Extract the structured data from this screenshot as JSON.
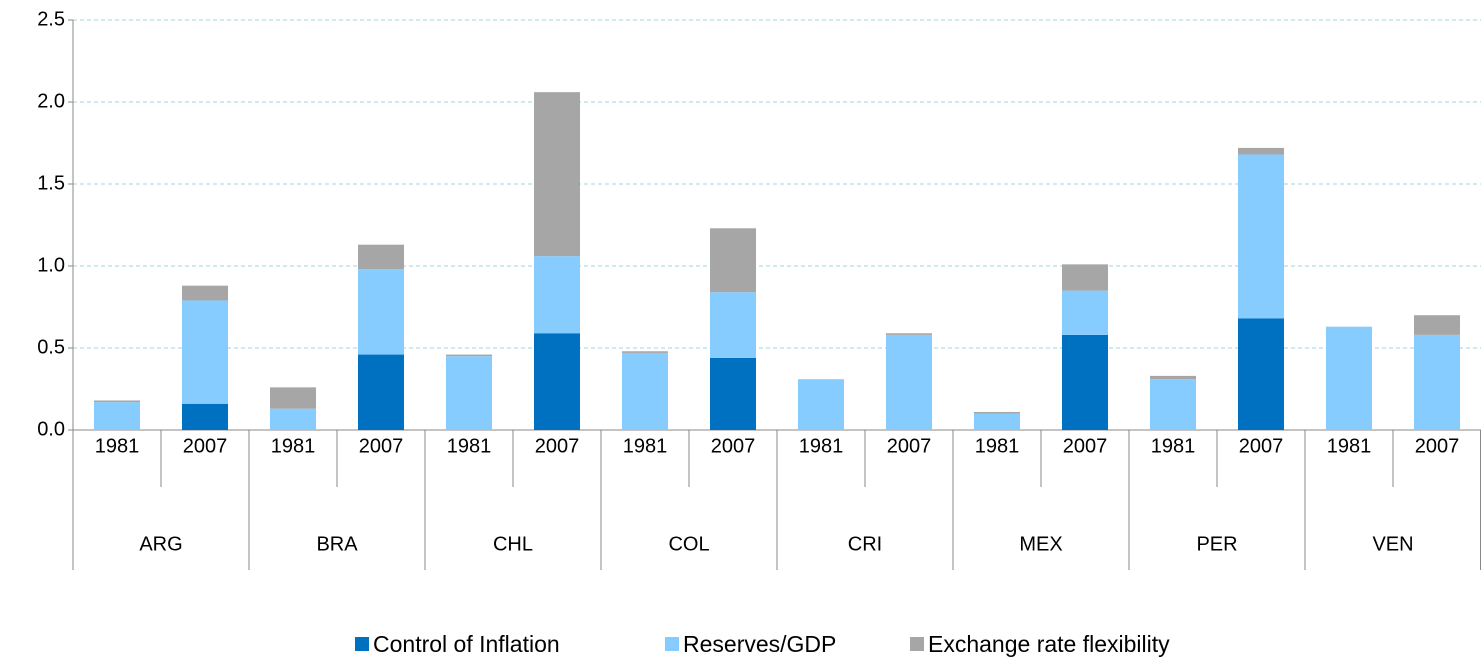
{
  "chart_data": {
    "type": "stacked_bar",
    "categories": [
      "1981",
      "2007",
      "1981",
      "2007",
      "1981",
      "2007",
      "1981",
      "2007",
      "1981",
      "2007",
      "1981",
      "2007",
      "1981",
      "2007",
      "1981",
      "2007"
    ],
    "groups": [
      "ARG",
      "BRA",
      "CHL",
      "COL",
      "CRI",
      "MEX",
      "PER",
      "VEN"
    ],
    "series": [
      {
        "name": "Control of Inflation",
        "color": "#0070c0",
        "values": [
          0,
          0.16,
          0,
          0.46,
          0,
          0.59,
          0,
          0.44,
          0,
          0,
          0,
          0.58,
          0,
          0.68,
          0,
          0
        ]
      },
      {
        "name": "Reserves/GDP",
        "color": "#87ccff",
        "values": [
          0.17,
          0.63,
          0.13,
          0.52,
          0.45,
          0.47,
          0.47,
          0.4,
          0.31,
          0.58,
          0.1,
          0.27,
          0.31,
          1.0,
          0.63,
          0.58
        ]
      },
      {
        "name": "Exchange rate flexibility",
        "color": "#a6a6a6",
        "values": [
          0.01,
          0.09,
          0.13,
          0.15,
          0.01,
          1.0,
          0.01,
          0.39,
          0,
          0.01,
          0.01,
          0.16,
          0.02,
          0.04,
          0,
          0.12
        ]
      }
    ],
    "ylim": [
      0,
      2.5
    ],
    "yticks": [
      {
        "value": 0,
        "label": "0.0"
      },
      0.5,
      {
        "value": 1,
        "label": "1.0"
      },
      1.5,
      {
        "value": 2,
        "label": "2.0"
      },
      2.5
    ],
    "grid": true,
    "legend": "bottom"
  }
}
